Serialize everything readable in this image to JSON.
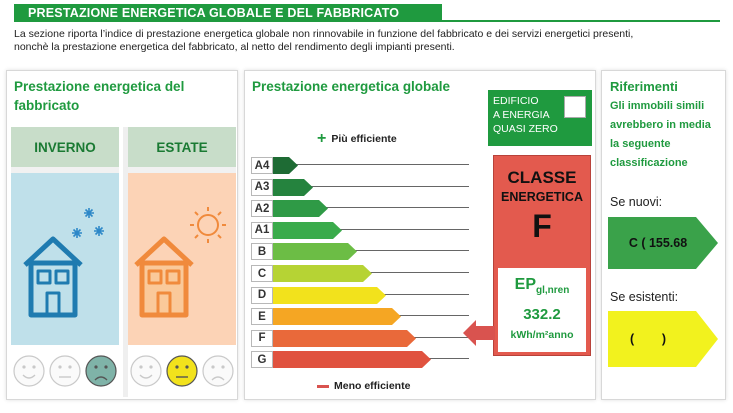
{
  "header": {
    "title": "PRESTAZIONE ENERGETICA GLOBALE E DEL FABBRICATO",
    "intro_line1": "La sezione riporta l’indice di prestazione energetica globale non rinnovabile in funzione del fabbricato  e  dei  servizi  energetici  presenti,",
    "intro_line2": "nonchè la prestazione energetica del fabbricato, al netto del rendimento degli impianti presenti."
  },
  "fabbricato": {
    "title_line1": "Prestazione energetica del",
    "title_line2": "fabbricato",
    "winter_label": "INVERNO",
    "summer_label": "ESTATE",
    "winter_rating": "sad",
    "summer_rating": "neutral",
    "colors": {
      "winter_house": "#1f7bb0",
      "summer_house": "#f08a3c",
      "sun": "#f08a3c",
      "snow": "#2d88c8"
    }
  },
  "globale": {
    "title": "Prestazione energetica globale",
    "nzeb_line1": "EDIFICIO",
    "nzeb_line2": "A ENERGIA",
    "nzeb_line3": "QUASI ZERO",
    "more_efficient": "Più efficiente",
    "less_efficient": "Meno efficiente",
    "classe_line1": "CLASSE",
    "classe_line2": "ENERGETICA",
    "class_letter": "F",
    "ep_main": "EP",
    "ep_sub": "gl,nren",
    "ep_value": "332.2",
    "ep_unit": "kWh/m²anno",
    "current_class_index": 8,
    "classes": [
      {
        "label": "A4",
        "color": "#1e6b34",
        "fill": 0.12
      },
      {
        "label": "A3",
        "color": "#25833e",
        "fill": 0.19
      },
      {
        "label": "A2",
        "color": "#2f9a46",
        "fill": 0.26
      },
      {
        "label": "A1",
        "color": "#3aab4b",
        "fill": 0.33
      },
      {
        "label": "B",
        "color": "#6cbd45",
        "fill": 0.4
      },
      {
        "label": "C",
        "color": "#b6d334",
        "fill": 0.47
      },
      {
        "label": "D",
        "color": "#f2e21c",
        "fill": 0.54
      },
      {
        "label": "E",
        "color": "#f5a623",
        "fill": 0.61
      },
      {
        "label": "F",
        "color": "#e9693a",
        "fill": 0.68
      },
      {
        "label": "G",
        "color": "#e0523f",
        "fill": 0.75
      }
    ],
    "colors": {
      "classe_box": "#e35a4e",
      "nzeb_box": "#1f9a3f",
      "arrow": "#d9534f"
    }
  },
  "riferimenti": {
    "title": "Riferimenti",
    "text_line1": "Gli immobili simili",
    "text_line2": "avrebbero in media",
    "text_line3": "la seguente",
    "text_line4": "classificazione",
    "new_label": "Se nuovi:",
    "new_value": "C ( 155.68",
    "existing_label": "Se esistenti:",
    "existing_value": "(        )",
    "colors": {
      "new_arrow": "#3aa24a",
      "existing_arrow": "#f2f21e"
    }
  }
}
